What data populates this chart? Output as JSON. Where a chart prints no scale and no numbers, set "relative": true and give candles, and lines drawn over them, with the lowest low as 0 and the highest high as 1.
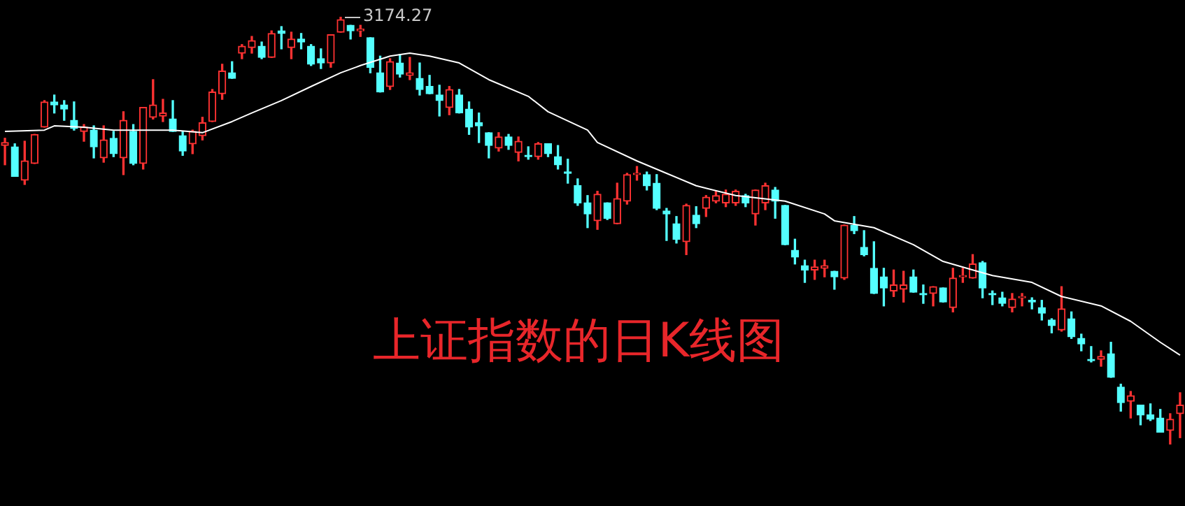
{
  "chart_data": {
    "type": "candlestick",
    "relative": true,
    "title": "上证指数的日K线图",
    "annotations": [
      "3174.27"
    ],
    "legend": false,
    "categories": [
      null,
      null,
      null,
      null,
      null,
      null,
      null,
      null,
      null,
      null,
      null,
      null,
      null,
      null,
      null,
      null,
      null,
      null,
      null,
      null,
      null,
      null,
      null,
      null,
      null,
      null,
      null,
      null,
      null,
      null,
      null,
      null,
      null,
      null,
      null,
      null,
      null,
      null,
      null,
      null,
      null,
      null,
      null,
      null,
      null,
      null,
      null,
      null,
      null,
      null,
      null,
      null,
      null,
      null,
      null,
      null,
      null,
      null,
      null,
      null,
      null,
      null,
      null,
      null,
      null,
      null,
      null,
      null,
      null,
      null,
      null,
      null,
      null,
      null,
      null,
      null,
      null,
      null,
      null,
      null,
      null,
      null,
      null,
      null,
      null,
      null,
      null,
      null,
      null,
      null,
      null,
      null,
      null,
      null,
      null,
      null,
      null,
      null,
      null,
      null,
      null,
      null,
      null,
      null,
      null,
      null,
      null,
      null,
      null,
      null,
      null,
      null,
      null,
      null,
      null,
      null,
      null,
      null,
      null,
      null
    ],
    "ohlc": [
      [
        0.699,
        0.716,
        0.654,
        0.706
      ],
      [
        0.696,
        0.703,
        0.627,
        0.627
      ],
      [
        0.618,
        0.709,
        0.608,
        0.663
      ],
      [
        0.657,
        0.725,
        0.657,
        0.725
      ],
      [
        0.742,
        0.804,
        0.742,
        0.801
      ],
      [
        0.801,
        0.817,
        0.775,
        0.794
      ],
      [
        0.794,
        0.804,
        0.758,
        0.784
      ],
      [
        0.758,
        0.801,
        0.735,
        0.739
      ],
      [
        0.732,
        0.748,
        0.709,
        0.742
      ],
      [
        0.735,
        0.745,
        0.67,
        0.696
      ],
      [
        0.67,
        0.745,
        0.66,
        0.712
      ],
      [
        0.716,
        0.732,
        0.673,
        0.68
      ],
      [
        0.67,
        0.778,
        0.631,
        0.758
      ],
      [
        0.732,
        0.748,
        0.654,
        0.657
      ],
      [
        0.657,
        0.788,
        0.644,
        0.788
      ],
      [
        0.765,
        0.853,
        0.761,
        0.794
      ],
      [
        0.768,
        0.807,
        0.755,
        0.775
      ],
      [
        0.761,
        0.804,
        0.732,
        0.732
      ],
      [
        0.722,
        0.732,
        0.676,
        0.686
      ],
      [
        0.703,
        0.735,
        0.68,
        0.732
      ],
      [
        0.722,
        0.765,
        0.712,
        0.752
      ],
      [
        0.755,
        0.83,
        0.755,
        0.824
      ],
      [
        0.82,
        0.889,
        0.807,
        0.873
      ],
      [
        0.869,
        0.895,
        0.856,
        0.856
      ],
      [
        0.915,
        0.935,
        0.902,
        0.931
      ],
      [
        0.928,
        0.954,
        0.915,
        0.944
      ],
      [
        0.931,
        0.941,
        0.902,
        0.905
      ],
      [
        0.905,
        0.967,
        0.905,
        0.961
      ],
      [
        0.967,
        0.977,
        0.925,
        0.961
      ],
      [
        0.928,
        0.964,
        0.902,
        0.948
      ],
      [
        0.948,
        0.961,
        0.925,
        0.941
      ],
      [
        0.931,
        0.935,
        0.886,
        0.889
      ],
      [
        0.902,
        0.925,
        0.879,
        0.892
      ],
      [
        0.892,
        0.958,
        0.882,
        0.958
      ],
      [
        0.964,
        1,
        0.964,
        0.993
      ],
      [
        0.98,
        0.98,
        0.948,
        0.967
      ],
      [
        0.967,
        0.98,
        0.954,
        0.971
      ],
      [
        0.951,
        0.951,
        0.869,
        0.882
      ],
      [
        0.869,
        0.908,
        0.824,
        0.824
      ],
      [
        0.837,
        0.902,
        0.83,
        0.895
      ],
      [
        0.892,
        0.912,
        0.859,
        0.866
      ],
      [
        0.863,
        0.905,
        0.853,
        0.869
      ],
      [
        0.856,
        0.892,
        0.817,
        0.83
      ],
      [
        0.837,
        0.863,
        0.82,
        0.82
      ],
      [
        0.817,
        0.84,
        0.768,
        0.804
      ],
      [
        0.788,
        0.837,
        0.771,
        0.83
      ],
      [
        0.817,
        0.83,
        0.775,
        0.775
      ],
      [
        0.784,
        0.801,
        0.725,
        0.742
      ],
      [
        0.752,
        0.775,
        0.706,
        0.745
      ],
      [
        0.729,
        0.729,
        0.67,
        0.699
      ],
      [
        0.693,
        0.729,
        0.686,
        0.719
      ],
      [
        0.719,
        0.725,
        0.69,
        0.699
      ],
      [
        0.683,
        0.719,
        0.663,
        0.709
      ],
      [
        0.676,
        0.696,
        0.667,
        0.673
      ],
      [
        0.673,
        0.706,
        0.667,
        0.703
      ],
      [
        0.703,
        0.703,
        0.673,
        0.68
      ],
      [
        0.673,
        0.699,
        0.644,
        0.654
      ],
      [
        0.637,
        0.667,
        0.611,
        0.634
      ],
      [
        0.605,
        0.621,
        0.559,
        0.565
      ],
      [
        0.565,
        0.582,
        0.507,
        0.539
      ],
      [
        0.523,
        0.592,
        0.503,
        0.585
      ],
      [
        0.565,
        0.565,
        0.526,
        0.529
      ],
      [
        0.516,
        0.611,
        0.516,
        0.575
      ],
      [
        0.569,
        0.634,
        0.562,
        0.631
      ],
      [
        0.631,
        0.65,
        0.618,
        0.634
      ],
      [
        0.631,
        0.637,
        0.595,
        0.605
      ],
      [
        0.611,
        0.631,
        0.549,
        0.552
      ],
      [
        0.546,
        0.552,
        0.477,
        0.539
      ],
      [
        0.516,
        0.533,
        0.471,
        0.48
      ],
      [
        0.474,
        0.562,
        0.444,
        0.559
      ],
      [
        0.536,
        0.556,
        0.507,
        0.516
      ],
      [
        0.552,
        0.582,
        0.533,
        0.578
      ],
      [
        0.569,
        0.592,
        0.565,
        0.582
      ],
      [
        0.565,
        0.595,
        0.556,
        0.585
      ],
      [
        0.565,
        0.595,
        0.559,
        0.592
      ],
      [
        0.582,
        0.585,
        0.556,
        0.565
      ],
      [
        0.539,
        0.595,
        0.513,
        0.595
      ],
      [
        0.565,
        0.611,
        0.549,
        0.605
      ],
      [
        0.595,
        0.601,
        0.529,
        0.569
      ],
      [
        0.559,
        0.559,
        0.467,
        0.467
      ],
      [
        0.454,
        0.48,
        0.422,
        0.438
      ],
      [
        0.418,
        0.431,
        0.379,
        0.408
      ],
      [
        0.408,
        0.431,
        0.386,
        0.415
      ],
      [
        0.412,
        0.431,
        0.392,
        0.418
      ],
      [
        0.405,
        0.405,
        0.363,
        0.392
      ],
      [
        0.389,
        0.513,
        0.386,
        0.513
      ],
      [
        0.513,
        0.533,
        0.493,
        0.5
      ],
      [
        0.461,
        0.5,
        0.441,
        0.444
      ],
      [
        0.412,
        0.474,
        0.353,
        0.353
      ],
      [
        0.392,
        0.412,
        0.324,
        0.366
      ],
      [
        0.359,
        0.408,
        0.346,
        0.373
      ],
      [
        0.363,
        0.405,
        0.333,
        0.373
      ],
      [
        0.392,
        0.408,
        0.356,
        0.356
      ],
      [
        0.353,
        0.373,
        0.33,
        0.35
      ],
      [
        0.353,
        0.369,
        0.324,
        0.369
      ],
      [
        0.366,
        0.366,
        0.333,
        0.333
      ],
      [
        0.32,
        0.412,
        0.31,
        0.389
      ],
      [
        0.392,
        0.412,
        0.379,
        0.395
      ],
      [
        0.389,
        0.444,
        0.389,
        0.422
      ],
      [
        0.425,
        0.428,
        0.343,
        0.366
      ],
      [
        0.353,
        0.359,
        0.327,
        0.35
      ],
      [
        0.343,
        0.356,
        0.324,
        0.33
      ],
      [
        0.32,
        0.353,
        0.31,
        0.34
      ],
      [
        0.343,
        0.353,
        0.324,
        0.346
      ],
      [
        0.337,
        0.343,
        0.317,
        0.333
      ],
      [
        0.32,
        0.337,
        0.291,
        0.307
      ],
      [
        0.291,
        0.294,
        0.261,
        0.278
      ],
      [
        0.268,
        0.369,
        0.265,
        0.317
      ],
      [
        0.294,
        0.31,
        0.248,
        0.252
      ],
      [
        0.248,
        0.258,
        0.219,
        0.235
      ],
      [
        0.199,
        0.229,
        0.193,
        0.196
      ],
      [
        0.199,
        0.219,
        0.183,
        0.206
      ],
      [
        0.212,
        0.239,
        0.157,
        0.157
      ],
      [
        0.134,
        0.141,
        0.078,
        0.098
      ],
      [
        0.101,
        0.124,
        0.062,
        0.114
      ],
      [
        0.092,
        0.092,
        0.046,
        0.069
      ],
      [
        0.069,
        0.095,
        0.056,
        0.059
      ],
      [
        0.062,
        0.082,
        0.029,
        0.029
      ],
      [
        0.033,
        0.072,
        0,
        0.059
      ],
      [
        0.072,
        0.121,
        0.016,
        0.092
      ]
    ],
    "colors": [
      "#ff3232",
      "#54ffff",
      "#ff3232",
      "#ff3232",
      "#ff3232",
      "#54ffff",
      "#54ffff",
      "#54ffff",
      "#ff3232",
      "#54ffff",
      "#ff3232",
      "#54ffff",
      "#ff3232",
      "#54ffff",
      "#ff3232",
      "#ff3232",
      "#ff3232",
      "#54ffff",
      "#54ffff",
      "#ff3232",
      "#ff3232",
      "#ff3232",
      "#ff3232",
      "#54ffff",
      "#ff3232",
      "#ff3232",
      "#54ffff",
      "#ff3232",
      "#54ffff",
      "#ff3232",
      "#54ffff",
      "#54ffff",
      "#54ffff",
      "#ff3232",
      "#ff3232",
      "#54ffff",
      "#ff3232",
      "#54ffff",
      "#54ffff",
      "#ff3232",
      "#54ffff",
      "#ff3232",
      "#54ffff",
      "#54ffff",
      "#54ffff",
      "#ff3232",
      "#54ffff",
      "#54ffff",
      "#54ffff",
      "#54ffff",
      "#ff3232",
      "#54ffff",
      "#ff3232",
      "#54ffff",
      "#ff3232",
      "#54ffff",
      "#54ffff",
      "#54ffff",
      "#54ffff",
      "#54ffff",
      "#ff3232",
      "#54ffff",
      "#ff3232",
      "#ff3232",
      "#ff3232",
      "#54ffff",
      "#54ffff",
      "#54ffff",
      "#54ffff",
      "#ff3232",
      "#54ffff",
      "#ff3232",
      "#ff3232",
      "#ff3232",
      "#ff3232",
      "#54ffff",
      "#ff3232",
      "#ff3232",
      "#54ffff",
      "#54ffff",
      "#54ffff",
      "#54ffff",
      "#ff3232",
      "#ff3232",
      "#54ffff",
      "#ff3232",
      "#54ffff",
      "#54ffff",
      "#54ffff",
      "#54ffff",
      "#ff3232",
      "#ff3232",
      "#54ffff",
      "#54ffff",
      "#ff3232",
      "#54ffff",
      "#ff3232",
      "#ff3232",
      "#ff3232",
      "#54ffff",
      "#54ffff",
      "#54ffff",
      "#ff3232",
      "#ff3232",
      "#54ffff",
      "#54ffff",
      "#54ffff",
      "#ff3232",
      "#54ffff",
      "#54ffff",
      "#54ffff",
      "#ff3232",
      "#54ffff",
      "#54ffff",
      "#ff3232",
      "#54ffff",
      "#54ffff",
      "#54ffff",
      "#ff3232",
      "#ff3232"
    ],
    "series": [
      {
        "type": "line",
        "color": "#ffffff",
        "values": [
          0.732,
          null,
          null,
          null,
          0.735,
          0.745,
          null,
          null,
          0.742,
          null,
          null,
          0.735,
          null,
          null,
          null,
          null,
          null,
          0.735,
          null,
          null,
          0.729,
          null,
          null,
          0.755,
          null,
          0.775,
          null,
          null,
          0.804,
          null,
          null,
          0.837,
          null,
          null,
          0.869,
          null,
          0.886,
          null,
          null,
          0.908,
          null,
          0.915,
          null,
          0.908,
          null,
          null,
          0.892,
          null,
          null,
          0.853,
          null,
          null,
          null,
          0.814,
          null,
          0.778,
          null,
          null,
          null,
          0.735,
          0.706,
          null,
          null,
          null,
          0.663,
          null,
          null,
          0.634,
          null,
          null,
          0.605,
          null,
          null,
          null,
          0.582,
          null,
          null,
          null,
          null,
          0.569,
          null,
          null,
          null,
          0.539,
          0.523,
          null,
          null,
          null,
          0.507,
          null,
          null,
          null,
          0.467,
          null,
          null,
          0.428,
          null,
          null,
          0.408,
          null,
          0.395,
          null,
          null,
          null,
          0.379,
          null,
          null,
          0.346,
          null,
          null,
          null,
          0.324,
          null,
          null,
          0.288,
          null,
          null,
          0.239,
          null,
          0.209
        ]
      }
    ]
  }
}
